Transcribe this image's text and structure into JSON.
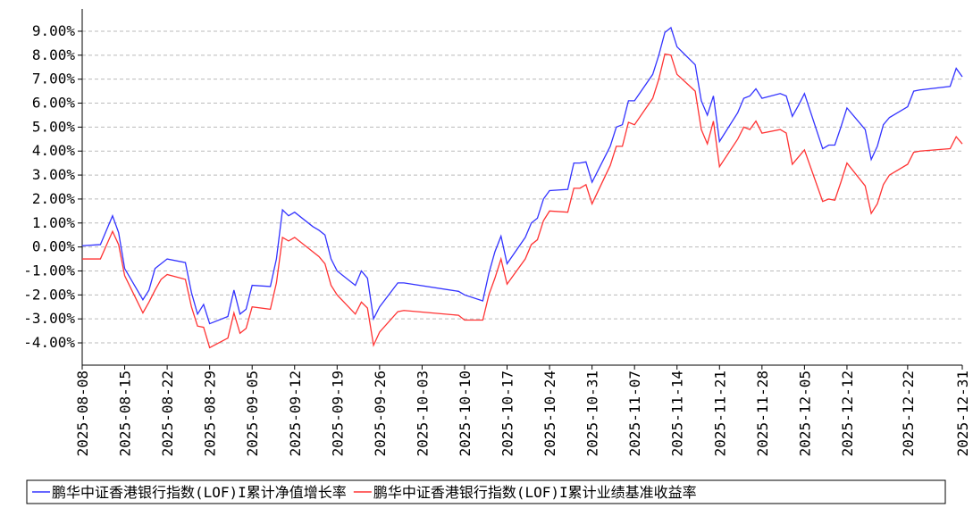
{
  "chart_data": {
    "type": "line",
    "x": [
      "2025-08-08",
      "2025-08-11",
      "2025-08-13",
      "2025-08-14",
      "2025-08-15",
      "2025-08-18",
      "2025-08-19",
      "2025-08-20",
      "2025-08-21",
      "2025-08-22",
      "2025-08-25",
      "2025-08-26",
      "2025-08-27",
      "2025-08-28",
      "2025-08-29",
      "2025-09-01",
      "2025-09-02",
      "2025-09-03",
      "2025-09-04",
      "2025-09-05",
      "2025-09-08",
      "2025-09-09",
      "2025-09-10",
      "2025-09-11",
      "2025-09-12",
      "2025-09-15",
      "2025-09-16",
      "2025-09-17",
      "2025-09-18",
      "2025-09-19",
      "2025-09-22",
      "2025-09-23",
      "2025-09-24",
      "2025-09-25",
      "2025-09-26",
      "2025-09-29",
      "2025-09-30",
      "2025-10-09",
      "2025-10-10",
      "2025-10-13",
      "2025-10-14",
      "2025-10-15",
      "2025-10-16",
      "2025-10-17",
      "2025-10-20",
      "2025-10-21",
      "2025-10-22",
      "2025-10-23",
      "2025-10-24",
      "2025-10-27",
      "2025-10-28",
      "2025-10-29",
      "2025-10-30",
      "2025-10-31",
      "2025-11-03",
      "2025-11-04",
      "2025-11-05",
      "2025-11-06",
      "2025-11-07",
      "2025-11-10",
      "2025-11-11",
      "2025-11-12",
      "2025-11-13",
      "2025-11-14",
      "2025-11-17",
      "2025-11-18",
      "2025-11-19",
      "2025-11-20",
      "2025-11-21",
      "2025-11-24",
      "2025-11-25",
      "2025-11-26",
      "2025-11-27",
      "2025-11-28",
      "2025-12-01",
      "2025-12-02",
      "2025-12-03",
      "2025-12-04",
      "2025-12-05",
      "2025-12-08",
      "2025-12-09",
      "2025-12-10",
      "2025-12-11",
      "2025-12-12",
      "2025-12-15",
      "2025-12-16",
      "2025-12-17",
      "2025-12-18",
      "2025-12-19",
      "2025-12-22",
      "2025-12-23",
      "2025-12-24",
      "2025-12-29",
      "2025-12-30",
      "2025-12-31"
    ],
    "series": [
      {
        "name": "鹏华中证香港银行指数(LOF)I累计净值增长率",
        "color": "#3333ff",
        "values": [
          0.05,
          0.1,
          1.3,
          0.6,
          -0.9,
          -2.2,
          -1.8,
          -0.9,
          -0.7,
          -0.5,
          -0.65,
          -1.9,
          -2.8,
          -2.4,
          -3.2,
          -2.9,
          -1.8,
          -2.8,
          -2.6,
          -1.6,
          -1.65,
          -0.5,
          1.55,
          1.3,
          1.45,
          0.85,
          0.7,
          0.5,
          -0.5,
          -1.0,
          -1.6,
          -1.0,
          -1.3,
          -3.0,
          -2.5,
          -1.5,
          -1.5,
          -1.85,
          -2.0,
          -2.25,
          -1.1,
          -0.2,
          0.45,
          -0.7,
          0.4,
          1.0,
          1.2,
          2.0,
          2.35,
          2.4,
          3.5,
          3.5,
          3.55,
          2.7,
          4.2,
          5.0,
          5.1,
          6.1,
          6.1,
          7.2,
          8.0,
          8.95,
          9.15,
          8.35,
          7.6,
          6.1,
          5.5,
          6.3,
          4.4,
          5.6,
          6.2,
          6.3,
          6.6,
          6.2,
          6.4,
          6.3,
          5.45,
          5.9,
          6.4,
          4.1,
          4.25,
          4.25,
          5.0,
          5.8,
          4.9,
          3.65,
          4.2,
          5.1,
          5.4,
          5.85,
          6.5,
          6.55,
          6.7,
          7.45,
          7.1
        ]
      },
      {
        "name": "鹏华中证香港银行指数(LOF)I累计业绩基准收益率",
        "color": "#ff3333",
        "values": [
          -0.5,
          -0.5,
          0.65,
          0.1,
          -1.2,
          -2.75,
          -2.3,
          -1.8,
          -1.35,
          -1.15,
          -1.35,
          -2.5,
          -3.3,
          -3.35,
          -4.2,
          -3.8,
          -2.75,
          -3.6,
          -3.4,
          -2.5,
          -2.6,
          -1.5,
          0.4,
          0.25,
          0.4,
          -0.2,
          -0.4,
          -0.7,
          -1.6,
          -2.0,
          -2.8,
          -2.3,
          -2.55,
          -4.1,
          -3.55,
          -2.7,
          -2.65,
          -2.85,
          -3.05,
          -3.05,
          -2.0,
          -1.3,
          -0.5,
          -1.55,
          -0.5,
          0.1,
          0.3,
          1.1,
          1.5,
          1.45,
          2.45,
          2.45,
          2.6,
          1.8,
          3.4,
          4.2,
          4.2,
          5.2,
          5.1,
          6.2,
          7.0,
          8.05,
          8.0,
          7.2,
          6.5,
          4.9,
          4.3,
          5.25,
          3.35,
          4.5,
          5.0,
          4.9,
          5.25,
          4.75,
          4.9,
          4.75,
          3.45,
          3.75,
          4.05,
          1.9,
          2.0,
          1.95,
          2.7,
          3.5,
          2.55,
          1.4,
          1.8,
          2.6,
          3.0,
          3.45,
          3.95,
          4.0,
          4.1,
          4.6,
          4.3
        ]
      }
    ],
    "xlim": [
      "2025-08-08",
      "2025-12-31"
    ],
    "xticks": [
      "2025-08-08",
      "2025-08-15",
      "2025-08-22",
      "2025-08-29",
      "2025-09-05",
      "2025-09-12",
      "2025-09-19",
      "2025-09-26",
      "2025-10-03",
      "2025-10-10",
      "2025-10-17",
      "2025-10-24",
      "2025-10-31",
      "2025-11-07",
      "2025-11-14",
      "2025-11-21",
      "2025-11-28",
      "2025-12-05",
      "2025-12-12",
      "2025-12-22",
      "2025-12-31"
    ],
    "ylim": [
      -4.93,
      9.93
    ],
    "yticks": [
      {
        "value": 9,
        "label": "9.00%"
      },
      {
        "value": 8,
        "label": "8.00%"
      },
      {
        "value": 7,
        "label": "7.00%"
      },
      {
        "value": 6,
        "label": "6.00%"
      },
      {
        "value": 5,
        "label": "5.00%"
      },
      {
        "value": 4,
        "label": "4.00%"
      },
      {
        "value": 3,
        "label": "3.00%"
      },
      {
        "value": 2,
        "label": "2.00%"
      },
      {
        "value": 1,
        "label": "1.00%"
      },
      {
        "value": 0,
        "label": "0.00%"
      },
      {
        "value": -1,
        "label": "-1.00%"
      },
      {
        "value": -2,
        "label": "-2.00%"
      },
      {
        "value": -3,
        "label": "-3.00%"
      },
      {
        "value": -4,
        "label": "-4.00%"
      }
    ],
    "grid": true,
    "legend": "bottom"
  }
}
